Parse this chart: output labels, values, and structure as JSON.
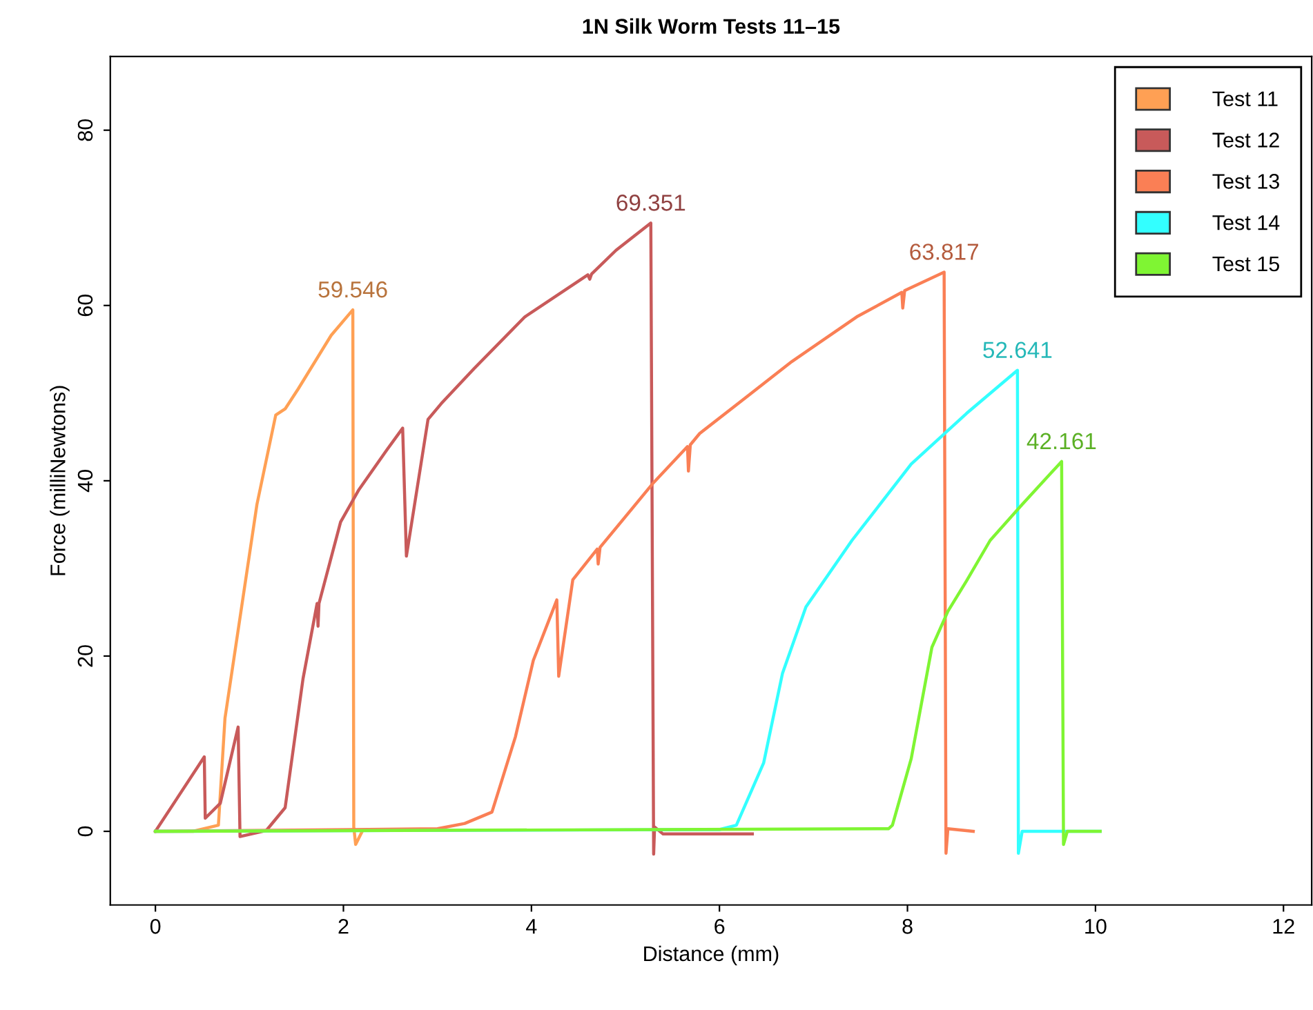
{
  "chart_data": {
    "type": "line",
    "title": "1N Silk Worm Tests 11–15",
    "xlabel": "Distance (mm)",
    "ylabel": "Force (milliNewtons)",
    "xlim": [
      -0.48,
      12.3
    ],
    "ylim": [
      -8.4,
      88.4
    ],
    "xticks": [
      0,
      2,
      4,
      6,
      8,
      10,
      12
    ],
    "yticks": [
      0,
      20,
      40,
      60,
      80
    ],
    "grid": false,
    "legend": "top right",
    "marker": "none",
    "line_style": "solid",
    "series": [
      {
        "name": "Test 11",
        "color": "#ffa054",
        "x": [
          0,
          0.4,
          0.67,
          0.74,
          1.08,
          1.28,
          1.38,
          1.52,
          1.87,
          2.1,
          2.11,
          2.13,
          2.2
        ],
        "values": [
          0,
          0,
          0.7,
          12.9,
          37.3,
          47.5,
          48.2,
          50.5,
          56.6,
          59.5,
          0.5,
          -1.5,
          0
        ]
      },
      {
        "name": "Test 12",
        "color": "#c85a5a",
        "x": [
          0,
          0.52,
          0.53,
          0.69,
          0.88,
          0.9,
          1.18,
          1.38,
          1.57,
          1.72,
          1.73,
          1.74,
          1.97,
          2.16,
          2.46,
          2.63,
          2.67,
          2.9,
          3.04,
          3.39,
          3.93,
          4.6,
          4.62,
          4.64,
          4.9,
          5.27,
          5.3,
          5.31,
          5.4,
          6.35
        ],
        "values": [
          0,
          8.5,
          1.5,
          3.2,
          11.9,
          -0.6,
          0.1,
          2.7,
          17.4,
          26,
          23.4,
          26,
          35.3,
          38.9,
          43.5,
          46,
          31.4,
          47,
          48.8,
          52.8,
          58.7,
          63.5,
          63,
          63.6,
          66.3,
          69.4,
          -2.6,
          0.5,
          -0.3,
          -0.3
        ]
      },
      {
        "name": "Test 13",
        "color": "#fa7f55",
        "x": [
          0,
          3.0,
          3.29,
          3.58,
          3.83,
          4.02,
          4.27,
          4.29,
          4.44,
          4.7,
          4.71,
          4.73,
          5.3,
          5.66,
          5.67,
          5.69,
          5.79,
          6.28,
          6.77,
          7.46,
          7.94,
          7.95,
          7.97,
          8.39,
          8.41,
          8.43,
          8.7
        ],
        "values": [
          0,
          0.3,
          0.9,
          2.2,
          10.8,
          19.5,
          26.4,
          17.7,
          28.7,
          32.2,
          30.5,
          32.4,
          39.8,
          43.9,
          41.1,
          44.1,
          45.4,
          49.5,
          53.6,
          58.7,
          61.5,
          59.7,
          61.7,
          63.8,
          -2.5,
          0.3,
          0
        ]
      },
      {
        "name": "Test 14",
        "color": "#33ffff",
        "x": [
          0,
          6.0,
          6.18,
          6.47,
          6.67,
          6.92,
          7.41,
          8.04,
          8.63,
          9.17,
          9.18,
          9.22,
          10.05
        ],
        "values": [
          0,
          0.2,
          0.7,
          7.8,
          18,
          25.6,
          33.2,
          41.9,
          47.7,
          52.6,
          -2.5,
          0,
          0
        ]
      },
      {
        "name": "Test 15",
        "color": "#7ff533",
        "x": [
          0,
          7.8,
          7.84,
          8.04,
          8.26,
          8.43,
          8.63,
          8.88,
          9.22,
          9.64,
          9.66,
          9.7,
          10.05
        ],
        "values": [
          0,
          0.3,
          0.7,
          8.3,
          21,
          25.1,
          28.6,
          33.2,
          37.3,
          42.2,
          -1.5,
          0,
          0
        ]
      }
    ],
    "annotations": [
      {
        "text": "59.546",
        "x": 2.1,
        "y": 59.5
      },
      {
        "text": "69.351",
        "x": 5.27,
        "y": 69.4
      },
      {
        "text": "63.817",
        "x": 8.39,
        "y": 63.8
      },
      {
        "text": "52.641",
        "x": 9.17,
        "y": 52.6
      },
      {
        "text": "42.161",
        "x": 9.64,
        "y": 42.2
      }
    ]
  }
}
